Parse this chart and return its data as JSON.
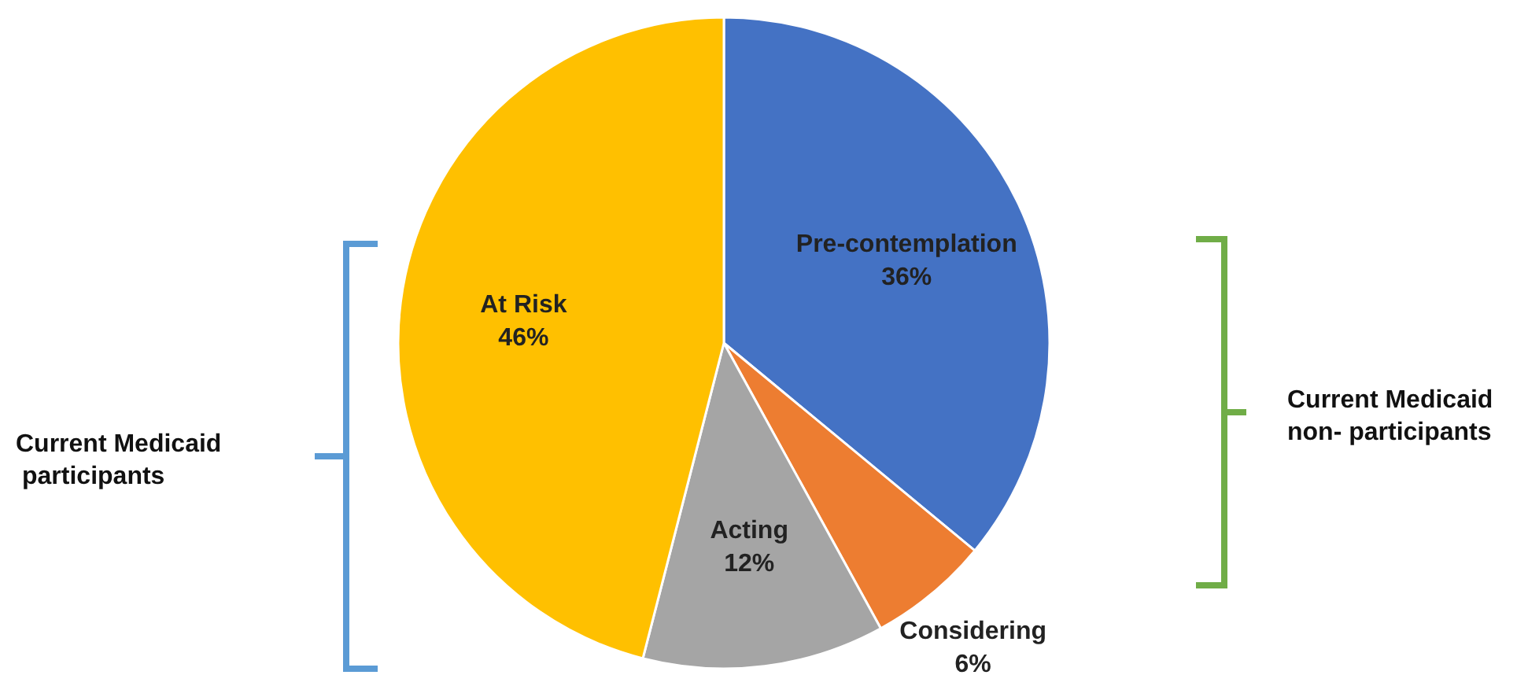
{
  "chart_data": {
    "type": "pie",
    "categories": [
      "Pre-contemplation",
      "Considering",
      "Acting",
      "At Risk"
    ],
    "values": [
      36,
      6,
      12,
      46
    ],
    "colors": [
      "#4472c4",
      "#ed7d31",
      "#a5a5a5",
      "#ffc000"
    ],
    "value_labels": [
      "36%",
      "6%",
      "12%",
      "46%"
    ],
    "annotations": [
      "Current Medicaid participants",
      "Current Medicaid non- participants"
    ]
  }
}
